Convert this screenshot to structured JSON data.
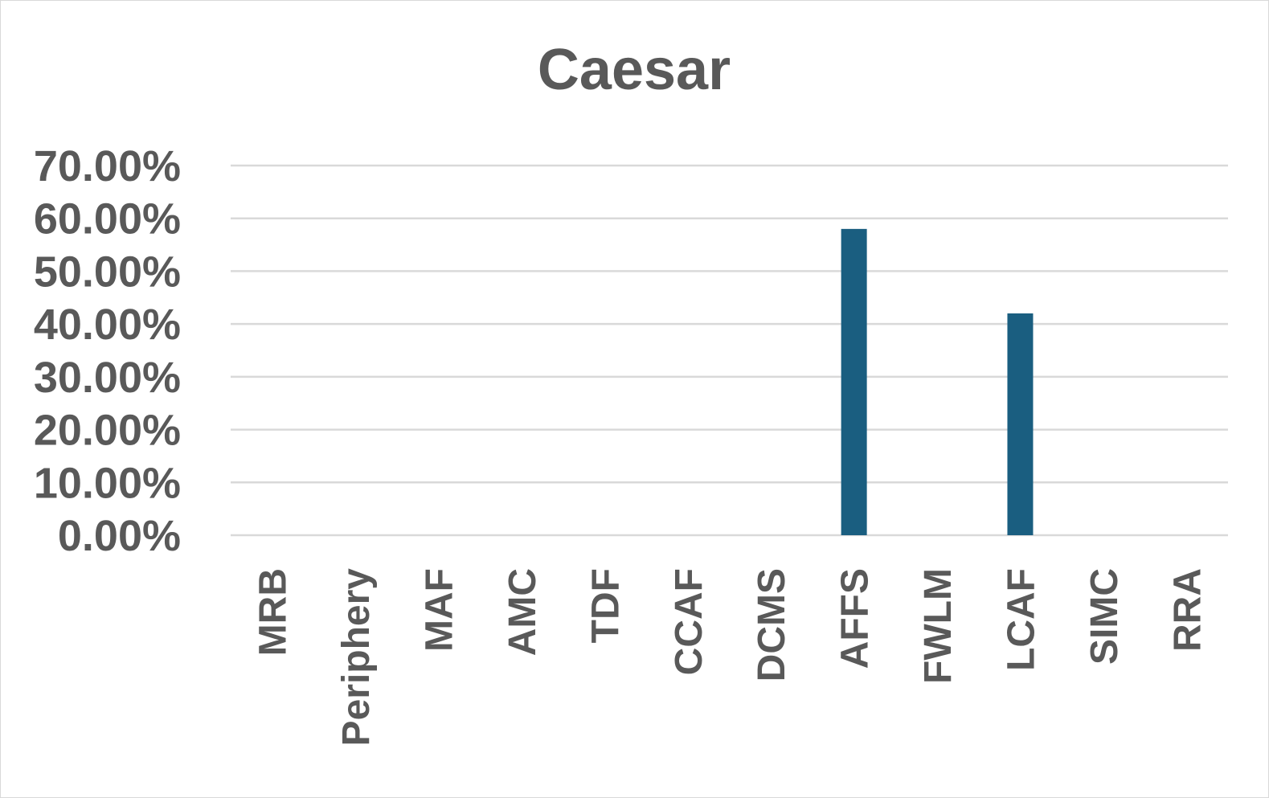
{
  "chart_data": {
    "type": "bar",
    "title": "Caesar",
    "xlabel": "",
    "ylabel": "",
    "categories": [
      "MRB",
      "Periphery",
      "MAF",
      "AMC",
      "TDF",
      "CCAF",
      "DCMS",
      "AFFS",
      "FWLM",
      "LCAF",
      "SIMC",
      "RRA"
    ],
    "values": [
      0,
      0,
      0,
      0,
      0,
      0,
      0,
      0.58,
      0,
      0.42,
      0,
      0
    ],
    "ylim": [
      0,
      0.7
    ],
    "yticks": [
      0,
      0.1,
      0.2,
      0.3,
      0.4,
      0.5,
      0.6,
      0.7
    ],
    "ytick_labels": [
      "0.00%",
      "10.00%",
      "20.00%",
      "30.00%",
      "40.00%",
      "50.00%",
      "60.00%",
      "70.00%"
    ],
    "grid": true,
    "legend": "none",
    "bar_color": "#1a5e80"
  }
}
